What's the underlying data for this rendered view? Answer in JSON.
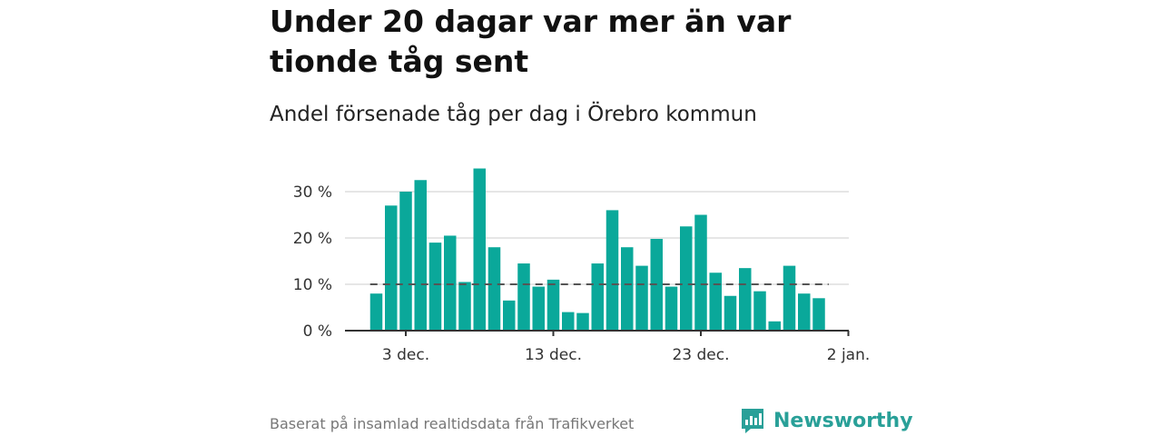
{
  "title": "Under 20 dagar var mer än var tionde tåg sent",
  "subtitle": "Andel försenade tåg per dag i Örebro kommun",
  "source": "Baserat på insamlad realtidsdata från Trafikverket",
  "brand": {
    "name": "Newsworthy",
    "logo_icon": "newsworthy-logo-icon",
    "color": "#29a098"
  },
  "chart_data": {
    "type": "bar",
    "x_start_label": "1 dec.",
    "categories": [
      "1 dec.",
      "2 dec.",
      "3 dec.",
      "4 dec.",
      "5 dec.",
      "6 dec.",
      "7 dec.",
      "8 dec.",
      "9 dec.",
      "10 dec.",
      "11 dec.",
      "12 dec.",
      "13 dec.",
      "14 dec.",
      "15 dec.",
      "16 dec.",
      "17 dec.",
      "18 dec.",
      "19 dec.",
      "20 dec.",
      "21 dec.",
      "22 dec.",
      "23 dec.",
      "24 dec.",
      "25 dec.",
      "26 dec.",
      "27 dec.",
      "28 dec.",
      "29 dec.",
      "30 dec.",
      "31 dec."
    ],
    "values": [
      8,
      27,
      30,
      32.5,
      19,
      20.5,
      10.5,
      35,
      18,
      6.5,
      14.5,
      9.5,
      11,
      4,
      3.8,
      14.5,
      26,
      18,
      14,
      19.8,
      9.5,
      22.5,
      25,
      12.5,
      7.5,
      13.5,
      8.5,
      2,
      14,
      8,
      7
    ],
    "reference_line": {
      "value": 10,
      "style": "dashed"
    },
    "ylim": [
      0,
      35
    ],
    "yticks": [
      0,
      10,
      20,
      30
    ],
    "ytick_labels": [
      "0 %",
      "10 %",
      "20 %",
      "30 %"
    ],
    "xticks": [
      {
        "index": 2,
        "label": "3 dec."
      },
      {
        "index": 12,
        "label": "13 dec."
      },
      {
        "index": 22,
        "label": "23 dec."
      },
      {
        "index": 32,
        "label": "2 jan."
      }
    ],
    "xlabel": "",
    "ylabel": "",
    "bar_color": "#0aa89a",
    "grid": true
  }
}
